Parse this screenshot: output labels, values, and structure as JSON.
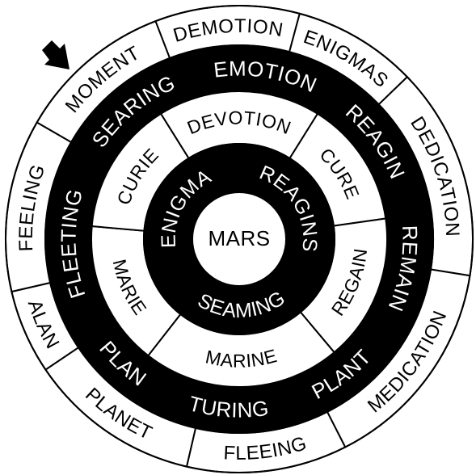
{
  "rings": [
    {
      "id": "outer",
      "fill": "#ffffff",
      "text_color": "#000000",
      "segments": [
        {
          "label": "DEMOTION",
          "start": -21,
          "end": 15
        },
        {
          "label": "ENIGMAS",
          "start": 15,
          "end": 46
        },
        {
          "label": "DEDICATION",
          "start": 46,
          "end": 99
        },
        {
          "label": "MEDICATION",
          "start": 99,
          "end": 153
        },
        {
          "label": "FLEEING",
          "start": 153,
          "end": 193
        },
        {
          "label": "PLANET",
          "start": 193,
          "end": 236
        },
        {
          "label": "ALAN",
          "start": 236,
          "end": 257
        },
        {
          "label": "FEELING",
          "start": 257,
          "end": 300
        },
        {
          "label": "MOMENT",
          "start": 300,
          "end": 339
        }
      ]
    },
    {
      "id": "second",
      "fill": "#000000",
      "text_color": "#ffffff",
      "segments": [
        {
          "label": "EMOTION",
          "start": -15,
          "end": 33
        },
        {
          "label": "REAGIN",
          "start": 33,
          "end": 76
        },
        {
          "label": "REMAIN",
          "start": 76,
          "end": 124
        },
        {
          "label": "PLANT",
          "start": 124,
          "end": 162
        },
        {
          "label": "TURING",
          "start": 162,
          "end": 205
        },
        {
          "label": "PLAN",
          "start": 205,
          "end": 241
        },
        {
          "label": "FLEETING",
          "start": 241,
          "end": 296
        },
        {
          "label": "SEARING",
          "start": 296,
          "end": 345
        }
      ]
    },
    {
      "id": "third",
      "fill": "#ffffff",
      "text_color": "#000000",
      "segments": [
        {
          "label": "DEVOTION",
          "start": -32,
          "end": 32
        },
        {
          "label": "CURE",
          "start": 32,
          "end": 82
        },
        {
          "label": "REGAIN",
          "start": 82,
          "end": 140
        },
        {
          "label": "MARINE",
          "start": 140,
          "end": 218
        },
        {
          "label": "MARIE",
          "start": 218,
          "end": 275
        },
        {
          "label": "CURIE",
          "start": 275,
          "end": 328
        }
      ]
    },
    {
      "id": "fourth",
      "fill": "#000000",
      "text_color": "#ffffff",
      "segments": [
        {
          "label": "REAGINS",
          "start": 0,
          "end": 118
        },
        {
          "label": "SEAMING",
          "start": 118,
          "end": 238
        },
        {
          "label": "ENIGMA",
          "start": 238,
          "end": 360
        }
      ]
    }
  ],
  "center": {
    "label": "MARS",
    "fill": "#ffffff",
    "text_color": "#000000"
  },
  "pointer": {
    "icon": "arrow-icon",
    "color": "#000000"
  }
}
